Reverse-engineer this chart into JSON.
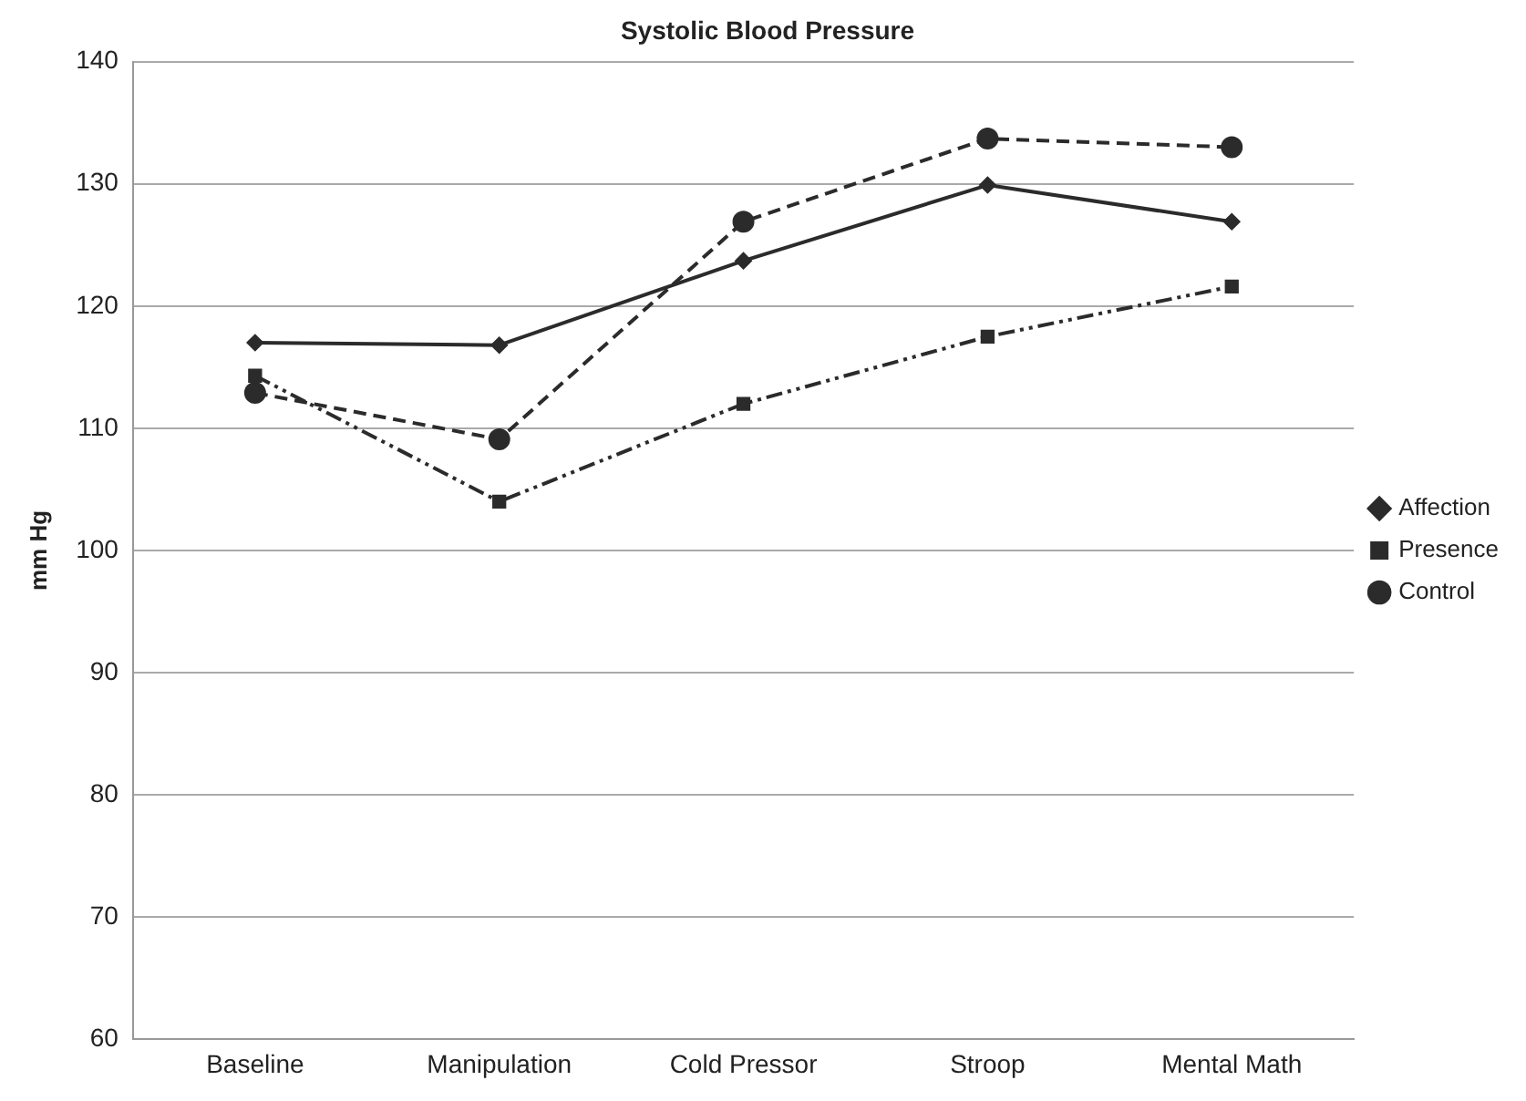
{
  "chart_data": {
    "type": "line",
    "title": "Systolic Blood Pressure",
    "ylabel": "mm Hg",
    "categories": [
      "Baseline",
      "Manipulation",
      "Cold Pressor",
      "Stroop",
      "Mental Math"
    ],
    "series": [
      {
        "name": "Affection",
        "color": "#2b2b2b",
        "marker": "diamond",
        "line_style": "solid",
        "values": [
          117.0,
          116.8,
          123.7,
          129.9,
          126.9
        ]
      },
      {
        "name": "Presence",
        "color": "#2b2b2b",
        "marker": "square",
        "line_style": "dashed",
        "values": [
          114.3,
          104.0,
          112.0,
          117.5,
          121.6
        ]
      },
      {
        "name": "Control",
        "color": "#2b2b2b",
        "marker": "circle",
        "line_style": "dashed",
        "values": [
          112.9,
          109.1,
          126.9,
          133.7,
          133.0
        ]
      }
    ],
    "ylim": [
      60,
      140
    ],
    "yticks": [
      60,
      70,
      80,
      90,
      100,
      110,
      120,
      130,
      140
    ],
    "grid": "y",
    "legend": "right"
  }
}
